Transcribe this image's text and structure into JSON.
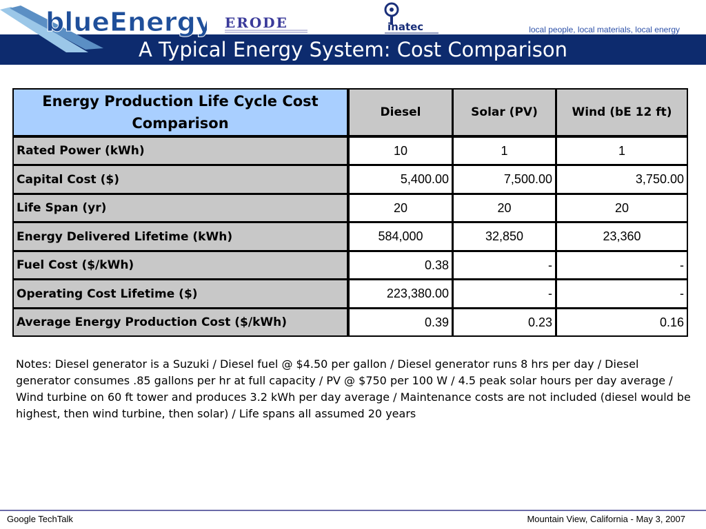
{
  "header": {
    "logo_text": "blueEnergy",
    "partner_logo_text": "ERODE",
    "partner2_logo_text": "inatec",
    "tagline": "local people, local materials, local energy",
    "title": "A Typical Energy System: Cost Comparison"
  },
  "table": {
    "corner_header": "Energy Production Life Cycle Cost Comparison",
    "columns": [
      "Diesel",
      "Solar (PV)",
      "Wind (bE 12 ft)"
    ],
    "rows": [
      {
        "label": "Rated Power (kWh)",
        "values": [
          "10",
          "1",
          "1"
        ]
      },
      {
        "label": "Capital Cost ($)",
        "values": [
          "5,400.00",
          "7,500.00",
          "3,750.00"
        ]
      },
      {
        "label": "Life Span (yr)",
        "values": [
          "20",
          "20",
          "20"
        ]
      },
      {
        "label": "Energy Delivered Lifetime (kWh)",
        "values": [
          "584,000",
          "32,850",
          "23,360"
        ]
      },
      {
        "label": "Fuel Cost ($/kWh)",
        "values": [
          "0.38",
          "-",
          "-"
        ]
      },
      {
        "label": "Operating Cost Lifetime ($)",
        "values": [
          "223,380.00",
          "-",
          "-"
        ]
      },
      {
        "label": "Average Energy Production Cost ($/kWh)",
        "values": [
          "0.39",
          "0.23",
          "0.16"
        ]
      }
    ]
  },
  "notes": "Notes: Diesel generator is a Suzuki / Diesel fuel @ $4.50 per gallon / Diesel generator runs 8 hrs per day / Diesel generator consumes .85 gallons per hr at full capacity / PV @ $750 per 100 W / 4.5 peak solar hours per day average / Wind turbine on 60 ft tower and produces 3.2 kWh per day average / Maintenance costs are not included (diesel would be highest, then wind turbine, then solar) / Life spans all assumed 20 years",
  "footer": {
    "left": "Google TechTalk",
    "right": "Mountain View, California - May 3, 2007"
  },
  "colors": {
    "title_bar": "#0d2b6e",
    "header_cell": "#a9cfff",
    "label_cell": "#c8c8c8",
    "tagline": "#2b4fa8"
  }
}
